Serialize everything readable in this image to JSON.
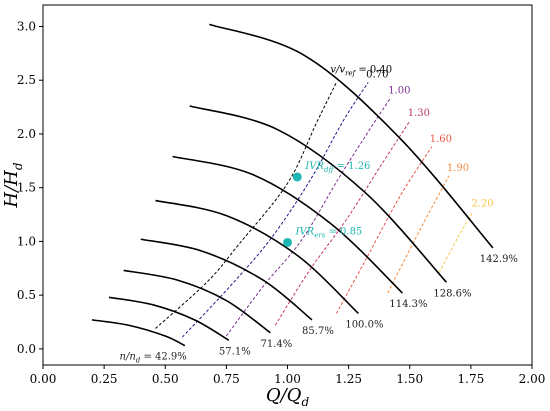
{
  "chart_data": {
    "type": "line",
    "xlabel": "Q/Q_d",
    "ylabel": "H/H_d",
    "xlim": [
      0.0,
      2.0
    ],
    "ylim": [
      -0.15,
      3.2
    ],
    "grid": false,
    "x_ticks": [
      0.0,
      0.25,
      0.5,
      0.75,
      1.0,
      1.25,
      1.5,
      1.75,
      2.0
    ],
    "x_tick_labels": [
      "0.00",
      "0.25",
      "0.50",
      "0.75",
      "1.00",
      "1.25",
      "1.50",
      "1.75",
      "2.00"
    ],
    "y_ticks": [
      0.0,
      0.5,
      1.0,
      1.5,
      2.0,
      2.5,
      3.0
    ],
    "y_tick_labels": [
      "0.0",
      "0.5",
      "1.0",
      "1.5",
      "2.0",
      "2.5",
      "3.0"
    ],
    "speed_curves": [
      {
        "label": "n/n_d = 42.9%",
        "x": [
          0.2,
          0.35,
          0.5,
          0.58
        ],
        "y": [
          0.27,
          0.22,
          0.12,
          0.03
        ]
      },
      {
        "label": "57.1%",
        "x": [
          0.27,
          0.45,
          0.62,
          0.76
        ],
        "y": [
          0.48,
          0.41,
          0.27,
          0.08
        ]
      },
      {
        "label": "71.4%",
        "x": [
          0.33,
          0.55,
          0.75,
          0.93
        ],
        "y": [
          0.73,
          0.64,
          0.45,
          0.15
        ]
      },
      {
        "label": "85.7%",
        "x": [
          0.4,
          0.65,
          0.9,
          1.1
        ],
        "y": [
          1.02,
          0.91,
          0.64,
          0.27
        ]
      },
      {
        "label": "100.0%",
        "x": [
          0.46,
          0.75,
          1.04,
          1.29
        ],
        "y": [
          1.38,
          1.24,
          0.87,
          0.33
        ]
      },
      {
        "label": "114.3%",
        "x": [
          0.53,
          0.86,
          1.18,
          1.47
        ],
        "y": [
          1.79,
          1.62,
          1.16,
          0.52
        ]
      },
      {
        "label": "128.6%",
        "x": [
          0.6,
          0.96,
          1.32,
          1.65
        ],
        "y": [
          2.26,
          2.04,
          1.45,
          0.62
        ]
      },
      {
        "label": "142.9%",
        "x": [
          0.68,
          1.07,
          1.46,
          1.84
        ],
        "y": [
          3.02,
          2.73,
          1.96,
          0.94
        ]
      }
    ],
    "velocity_ratio_lines": [
      {
        "label": "v/v_ref = 0.40",
        "color": "#000000",
        "x": [
          0.46,
          0.67,
          0.8,
          1.0,
          1.12,
          1.2
        ],
        "y": [
          0.19,
          0.62,
          0.97,
          1.54,
          2.11,
          2.48
        ]
      },
      {
        "label": "0.70",
        "color": "#1a1a8c",
        "x": [
          0.57,
          0.76,
          0.93,
          1.09,
          1.23,
          1.33
        ],
        "y": [
          0.11,
          0.57,
          1.02,
          1.56,
          2.13,
          2.48
        ]
      },
      {
        "label": "1.00",
        "color": "#7a2e8e",
        "x": [
          0.75,
          0.9,
          1.06,
          1.21,
          1.35,
          1.42
        ],
        "y": [
          0.12,
          0.58,
          1.02,
          1.59,
          2.09,
          2.33
        ]
      },
      {
        "label": "1.30",
        "color": "#c2356e",
        "x": [
          0.95,
          1.09,
          1.24,
          1.38,
          1.5
        ],
        "y": [
          0.22,
          0.73,
          1.2,
          1.7,
          2.12
        ]
      },
      {
        "label": "1.60",
        "color": "#ec5446",
        "x": [
          1.2,
          1.32,
          1.46,
          1.59
        ],
        "y": [
          0.33,
          0.83,
          1.42,
          1.88
        ]
      },
      {
        "label": "1.90",
        "color": "#f68d3d",
        "x": [
          1.41,
          1.54,
          1.66
        ],
        "y": [
          0.52,
          1.1,
          1.61
        ]
      },
      {
        "label": "2.20",
        "color": "#fcc94a",
        "x": [
          1.62,
          1.7,
          1.76
        ],
        "y": [
          0.71,
          1.05,
          1.28
        ]
      }
    ],
    "points": [
      {
        "label": "IVR_dff = 1.26",
        "x": 1.04,
        "y": 1.6,
        "color": "#20b6b1"
      },
      {
        "label": "IVR_ers = 0.85",
        "x": 1.0,
        "y": 0.99,
        "color": "#20b6b1"
      }
    ]
  }
}
